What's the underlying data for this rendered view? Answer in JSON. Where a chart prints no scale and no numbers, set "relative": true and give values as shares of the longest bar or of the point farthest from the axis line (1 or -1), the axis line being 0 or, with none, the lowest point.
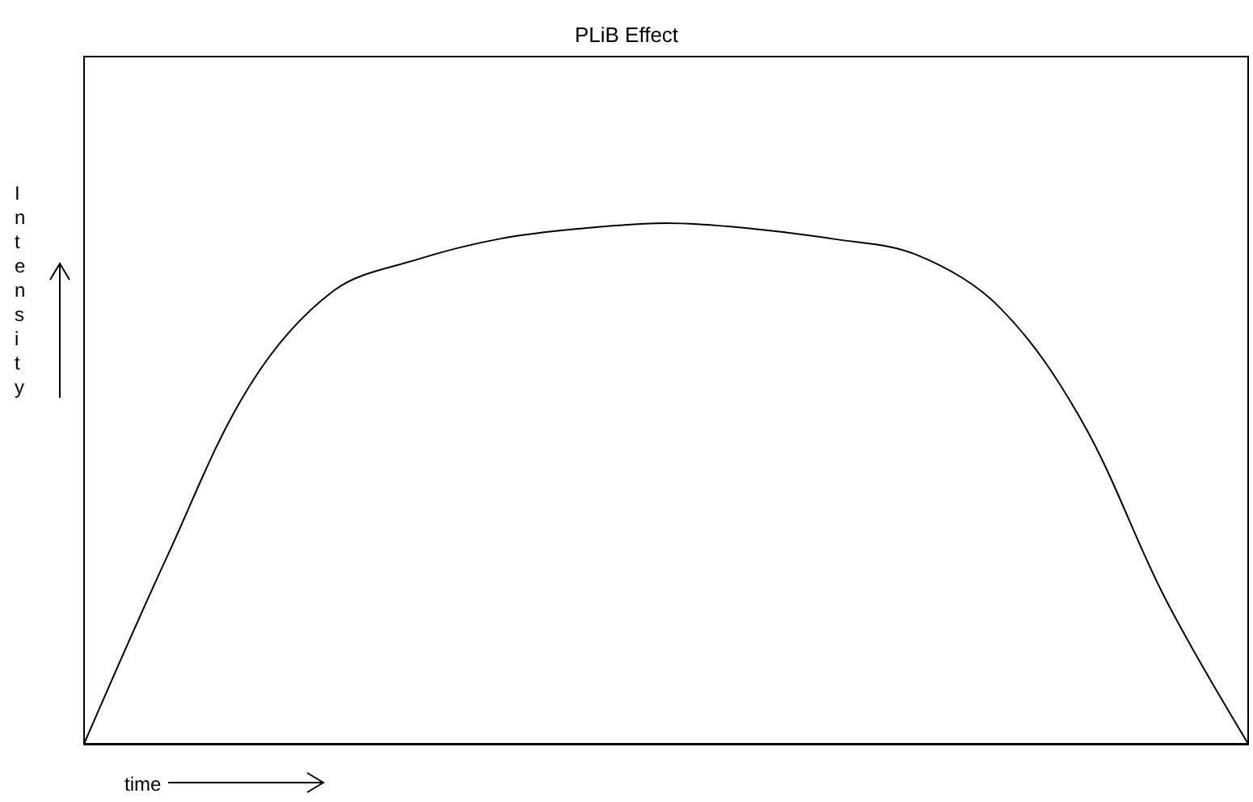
{
  "chart_data": {
    "type": "line",
    "title": "PLiB Effect",
    "xlabel": "time",
    "ylabel": "Intensity",
    "relative": true,
    "grid": false,
    "marker": "none",
    "line_style": "solid",
    "categories": [
      null,
      null,
      null,
      null,
      null,
      null,
      null,
      null,
      null,
      null,
      null,
      null,
      null,
      null,
      null
    ],
    "series": [
      {
        "color": "#000000",
        "values": [
          0,
          0.36,
          0.69,
          0.87,
          0.93,
          0.97,
          0.99,
          1,
          0.99,
          0.97,
          0.94,
          0.84,
          0.62,
          0.28,
          0
        ]
      }
    ]
  }
}
